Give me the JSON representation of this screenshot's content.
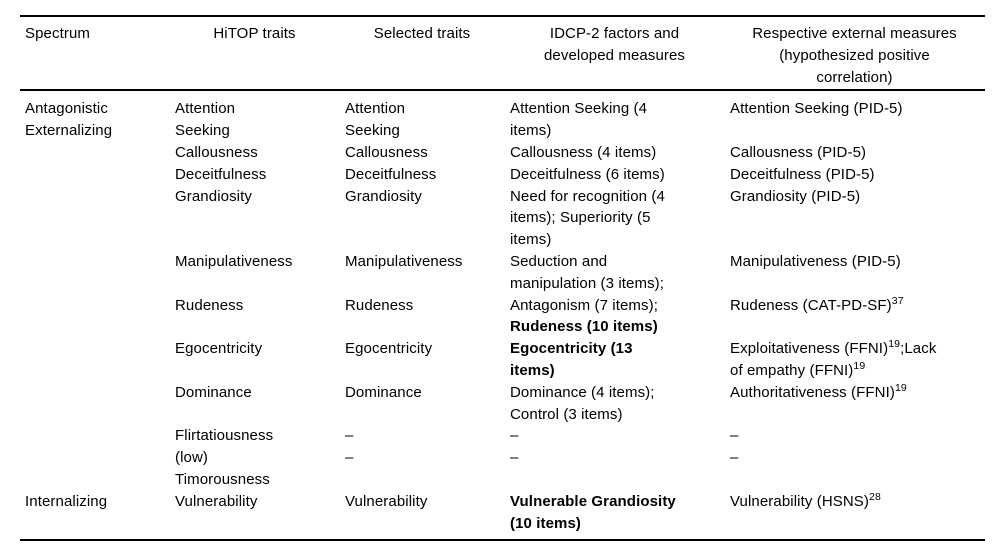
{
  "table": {
    "headers": [
      {
        "label": "Spectrum",
        "align": "left"
      },
      {
        "label": "HiTOP traits",
        "align": "center"
      },
      {
        "label": "Selected traits",
        "align": "center"
      },
      {
        "label": "IDCP-2 factors and\ndeveloped measures",
        "align": "center"
      },
      {
        "label": "Respective external measures\n(hypothesized positive\ncorrelation)",
        "align": "center"
      }
    ],
    "rows": [
      {
        "cells": [
          [
            {
              "text": "Antagonistic\nExternalizing"
            }
          ],
          [
            {
              "text": "Attention\nSeeking"
            }
          ],
          [
            {
              "text": "Attention\nSeeking"
            }
          ],
          [
            {
              "text": "Attention Seeking (4\nitems)"
            }
          ],
          [
            {
              "text": "Attention Seeking (PID-5)"
            }
          ]
        ]
      },
      {
        "cells": [
          [],
          [
            {
              "text": "Callousness"
            }
          ],
          [
            {
              "text": "Callousness"
            }
          ],
          [
            {
              "text": "Callousness (4 items)"
            }
          ],
          [
            {
              "text": "Callousness (PID-5)"
            }
          ]
        ]
      },
      {
        "cells": [
          [],
          [
            {
              "text": "Deceitfulness"
            }
          ],
          [
            {
              "text": "Deceitfulness"
            }
          ],
          [
            {
              "text": "Deceitfulness (6 items)"
            }
          ],
          [
            {
              "text": "Deceitfulness (PID-5)"
            }
          ]
        ]
      },
      {
        "cells": [
          [],
          [
            {
              "text": "Grandiosity"
            }
          ],
          [
            {
              "text": "Grandiosity"
            }
          ],
          [
            {
              "text": "Need for recognition (4\nitems); Superiority (5\nitems)"
            }
          ],
          [
            {
              "text": "Grandiosity (PID-5)"
            }
          ]
        ]
      },
      {
        "cells": [
          [],
          [
            {
              "text": "Manipulativeness"
            }
          ],
          [
            {
              "text": "Manipulativeness"
            }
          ],
          [
            {
              "text": "Seduction and\nmanipulation (3 items);"
            }
          ],
          [
            {
              "text": "Manipulativeness (PID-5)"
            }
          ]
        ]
      },
      {
        "cells": [
          [],
          [
            {
              "text": "Rudeness"
            }
          ],
          [
            {
              "text": "Rudeness"
            }
          ],
          [
            {
              "text": "Antagonism (7 items);\n"
            },
            {
              "text": "Rudeness (10 items)",
              "bold": true
            }
          ],
          [
            {
              "text": "Rudeness (CAT-PD-SF)"
            },
            {
              "text": "37",
              "sup": true
            }
          ]
        ]
      },
      {
        "cells": [
          [],
          [
            {
              "text": "Egocentricity"
            }
          ],
          [
            {
              "text": "Egocentricity"
            }
          ],
          [
            {
              "text": "Egocentricity (13\nitems)",
              "bold": true
            }
          ],
          [
            {
              "text": "Exploitativeness (FFNI)"
            },
            {
              "text": "19",
              "sup": true
            },
            {
              "text": ";Lack\nof empathy (FFNI)"
            },
            {
              "text": "19",
              "sup": true
            }
          ]
        ]
      },
      {
        "cells": [
          [],
          [
            {
              "text": "Dominance"
            }
          ],
          [
            {
              "text": "Dominance"
            }
          ],
          [
            {
              "text": "Dominance (4 items);\nControl (3 items)"
            }
          ],
          [
            {
              "text": "Authoritativeness (FFNI)"
            },
            {
              "text": "19",
              "sup": true
            }
          ]
        ]
      },
      {
        "cells": [
          [],
          [
            {
              "text": "Flirtatiousness"
            }
          ],
          [
            {
              "text": "–"
            }
          ],
          [
            {
              "text": "–"
            }
          ],
          [
            {
              "text": "–"
            }
          ]
        ]
      },
      {
        "cells": [
          [],
          [
            {
              "text": "(low)\nTimorousness"
            }
          ],
          [
            {
              "text": "–"
            }
          ],
          [
            {
              "text": "–"
            }
          ],
          [
            {
              "text": "–"
            }
          ]
        ]
      },
      {
        "cells": [
          [
            {
              "text": "Internalizing"
            }
          ],
          [
            {
              "text": "Vulnerability"
            }
          ],
          [
            {
              "text": "Vulnerability"
            }
          ],
          [
            {
              "text": "Vulnerable Grandiosity\n(10 items)",
              "bold": true
            }
          ],
          [
            {
              "text": "Vulnerability (HSNS)"
            },
            {
              "text": "28",
              "sup": true
            }
          ]
        ]
      }
    ]
  }
}
